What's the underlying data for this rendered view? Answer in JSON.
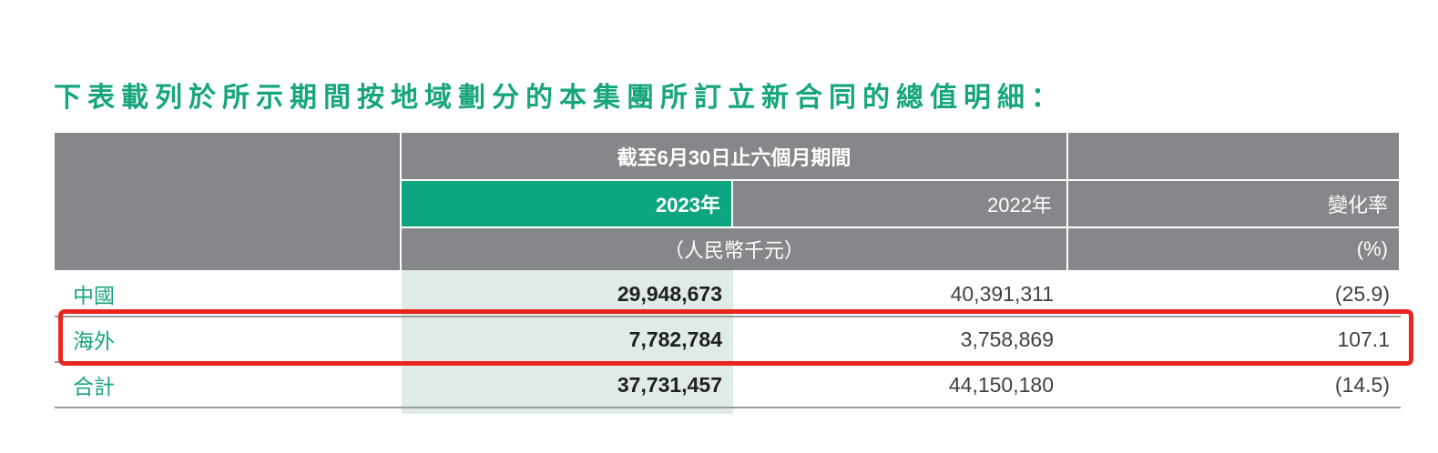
{
  "page_title": "下表載列於所示期間按地域劃分的本集團所訂立新合同的總值明細：",
  "table": {
    "period_header": "截至6月30日止六個月期間",
    "column_headers": {
      "y2023": "2023年",
      "y2022": "2022年",
      "change": "變化率"
    },
    "unit_row": {
      "currency": "（人民幣千元）",
      "percent": "(%)"
    },
    "rows": [
      {
        "label": "中國",
        "y2023": "29,948,673",
        "y2022": "40,391,311",
        "change": "(25.9)"
      },
      {
        "label": "海外",
        "y2023": "7,782,784",
        "y2022": "3,758,869",
        "change": "107.1"
      },
      {
        "label": "合計",
        "y2023": "37,731,457",
        "y2022": "44,150,180",
        "change": "(14.5)"
      }
    ],
    "highlighted_row": "海外"
  },
  "colors": {
    "title_green": "#17A57E",
    "header_gray": "#85878A",
    "accent_green": "#0CA57F",
    "light_green_column": "#DFEBE4",
    "row_separator_gray": "#9B9B9B",
    "number_dark": "#1F1F1F",
    "number_gray": "#414042",
    "highlight_red": "#E8251F"
  }
}
